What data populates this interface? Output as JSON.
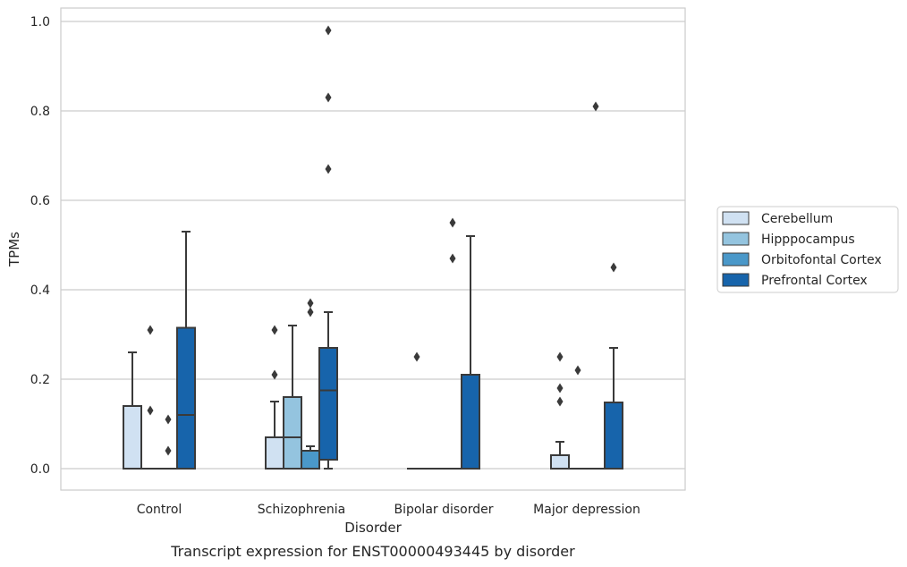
{
  "chart_data": {
    "type": "boxplot",
    "title": "",
    "caption": "Transcript expression for ENST00000493445 by disorder",
    "xlabel": "Disorder",
    "ylabel": "TPMs",
    "ylim": [
      -0.046,
      1.03
    ],
    "yticks": [
      0.0,
      0.2,
      0.4,
      0.6,
      0.8,
      1.0
    ],
    "ytick_labels": [
      "0.0",
      "0.2",
      "0.4",
      "0.6",
      "0.8",
      "1.0"
    ],
    "grid": "horizontal",
    "legend_position": "right",
    "categories": [
      "Control",
      "Schizophrenia",
      "Bipolar disorder",
      "Major depression"
    ],
    "series": [
      {
        "name": "Cerebellum",
        "color": "#d0e1f2",
        "boxes": [
          {
            "q1": 0.0,
            "median": 0.0,
            "q3": 0.14,
            "whisker_low": 0.0,
            "whisker_high": 0.26,
            "outliers": []
          },
          {
            "q1": 0.0,
            "median": 0.07,
            "q3": 0.07,
            "whisker_low": 0.0,
            "whisker_high": 0.15,
            "outliers": [
              0.21,
              0.31
            ]
          },
          {
            "q1": 0.0,
            "median": 0.0,
            "q3": 0.0,
            "whisker_low": 0.0,
            "whisker_high": 0.0,
            "outliers": [
              0.25
            ]
          },
          {
            "q1": 0.0,
            "median": 0.0,
            "q3": 0.03,
            "whisker_low": 0.0,
            "whisker_high": 0.06,
            "outliers": [
              0.15,
              0.18,
              0.25
            ]
          }
        ]
      },
      {
        "name": "Hipppocampus",
        "color": "#94c4df",
        "boxes": [
          {
            "q1": 0.0,
            "median": 0.0,
            "q3": 0.0,
            "whisker_low": 0.0,
            "whisker_high": 0.0,
            "outliers": [
              0.13,
              0.31
            ]
          },
          {
            "q1": 0.0,
            "median": 0.07,
            "q3": 0.16,
            "whisker_low": 0.0,
            "whisker_high": 0.32,
            "outliers": []
          },
          {
            "q1": 0.0,
            "median": 0.0,
            "q3": 0.0,
            "whisker_low": 0.0,
            "whisker_high": 0.0,
            "outliers": []
          },
          {
            "q1": 0.0,
            "median": 0.0,
            "q3": 0.0,
            "whisker_low": 0.0,
            "whisker_high": 0.0,
            "outliers": [
              0.22
            ]
          }
        ]
      },
      {
        "name": "Orbitofontal Cortex",
        "color": "#4a98c9",
        "boxes": [
          {
            "q1": 0.0,
            "median": 0.0,
            "q3": 0.0,
            "whisker_low": 0.0,
            "whisker_high": 0.0,
            "outliers": [
              0.04,
              0.11
            ]
          },
          {
            "q1": 0.0,
            "median": 0.0,
            "q3": 0.04,
            "whisker_low": 0.0,
            "whisker_high": 0.05,
            "outliers": [
              0.35,
              0.37
            ]
          },
          {
            "q1": 0.0,
            "median": 0.0,
            "q3": 0.0,
            "whisker_low": 0.0,
            "whisker_high": 0.0,
            "outliers": [
              0.47,
              0.55
            ]
          },
          {
            "q1": 0.0,
            "median": 0.0,
            "q3": 0.0,
            "whisker_low": 0.0,
            "whisker_high": 0.0,
            "outliers": [
              0.81
            ]
          }
        ]
      },
      {
        "name": "Prefrontal Cortex",
        "color": "#1764ab",
        "boxes": [
          {
            "q1": 0.0,
            "median": 0.12,
            "q3": 0.315,
            "whisker_low": 0.0,
            "whisker_high": 0.53,
            "outliers": []
          },
          {
            "q1": 0.02,
            "median": 0.175,
            "q3": 0.27,
            "whisker_low": 0.0,
            "whisker_high": 0.35,
            "outliers": [
              0.67,
              0.83,
              0.98
            ]
          },
          {
            "q1": 0.0,
            "median": 0.0,
            "q3": 0.21,
            "whisker_low": 0.0,
            "whisker_high": 0.52,
            "outliers": []
          },
          {
            "q1": 0.0,
            "median": 0.0,
            "q3": 0.148,
            "whisker_low": 0.0,
            "whisker_high": 0.27,
            "outliers": [
              0.45
            ]
          }
        ]
      }
    ]
  }
}
